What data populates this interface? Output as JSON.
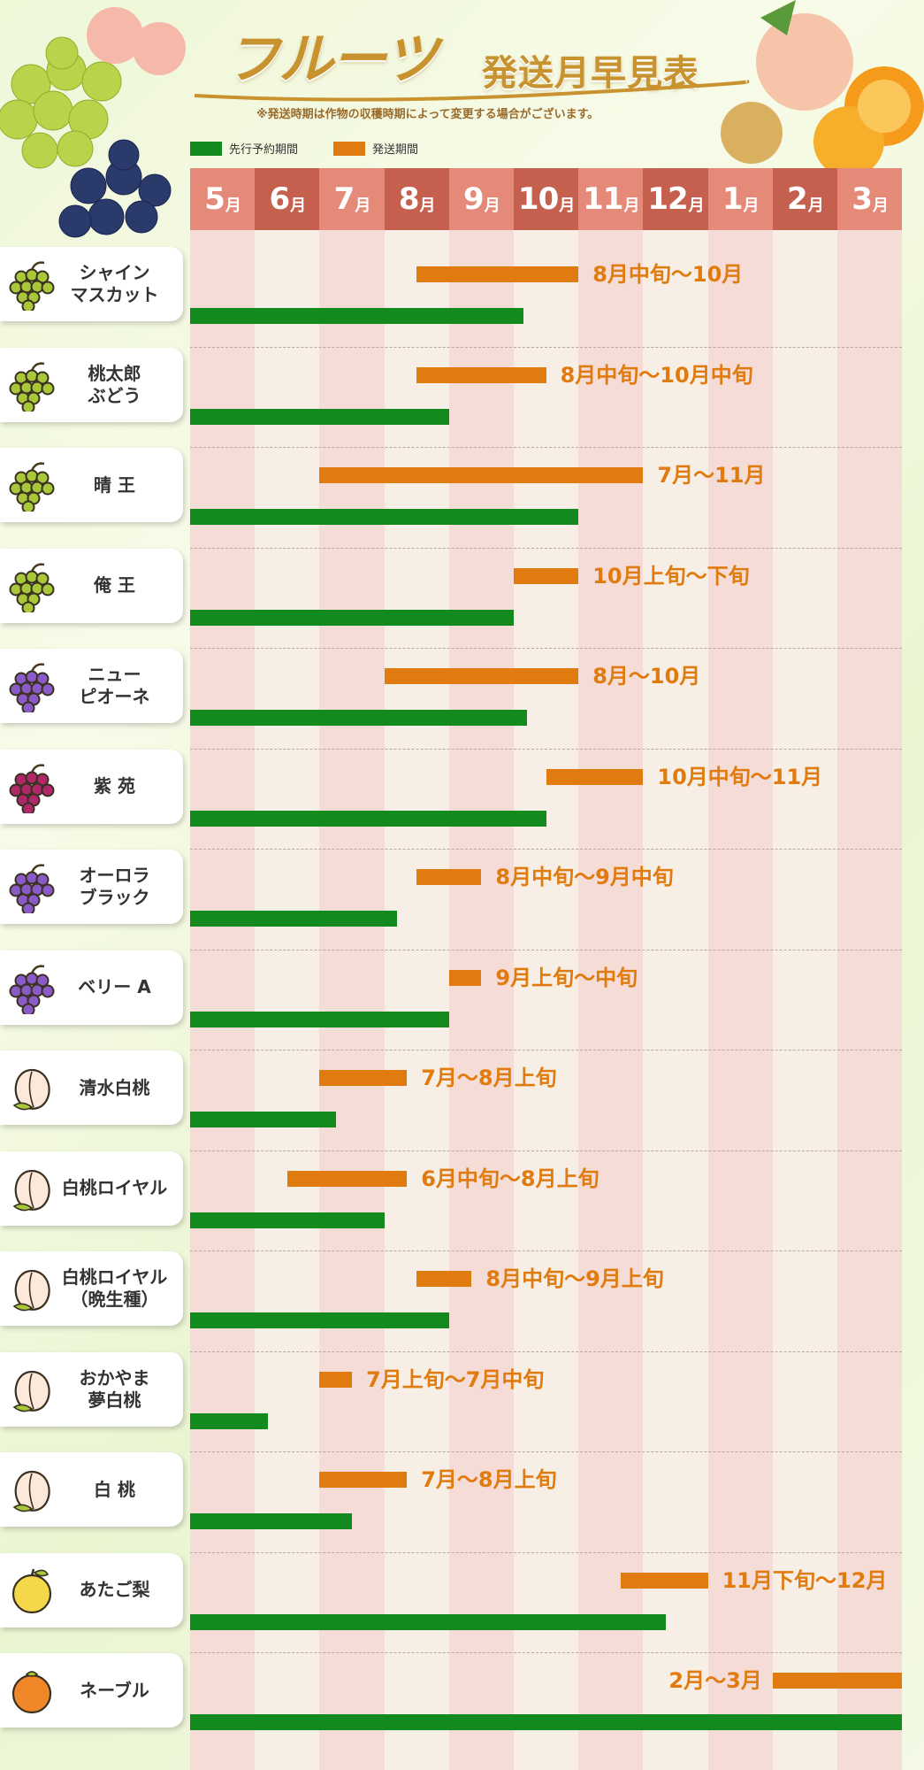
{
  "header": {
    "title_main": "フルーツ",
    "title_sub": "発送月早見表",
    "note": "※発送時期は作物の収穫時期によって変更する場合がございます。"
  },
  "legend": [
    {
      "label": "先行予約期間",
      "color": "#138a1e"
    },
    {
      "label": "発送期間",
      "color": "#e07b10"
    }
  ],
  "months": [
    {
      "num": "5",
      "unit": "月"
    },
    {
      "num": "6",
      "unit": "月"
    },
    {
      "num": "7",
      "unit": "月"
    },
    {
      "num": "8",
      "unit": "月"
    },
    {
      "num": "9",
      "unit": "月"
    },
    {
      "num": "10",
      "unit": "月"
    },
    {
      "num": "11",
      "unit": "月"
    },
    {
      "num": "12",
      "unit": "月"
    },
    {
      "num": "1",
      "unit": "月"
    },
    {
      "num": "2",
      "unit": "月"
    },
    {
      "num": "3",
      "unit": "月"
    }
  ],
  "colors": {
    "ship": "#e07b10",
    "preorder": "#138a1e",
    "head_light": "#e58a78",
    "head_dark": "#c5604e",
    "band_light": "#f7efe6",
    "band_dark": "#f6dcd6"
  },
  "chart_data": {
    "type": "bar",
    "x_axis": "month",
    "rows": [
      {
        "name": "シャイン\nマスカット",
        "icon": "green-grape-icon",
        "period_label": "8月中旬～10月",
        "ship": [
          3.5,
          6.0
        ],
        "preorder": [
          0.0,
          5.15
        ]
      },
      {
        "name": "桃太郎\nぶどう",
        "icon": "green-grape-icon",
        "period_label": "8月中旬～10月中旬",
        "ship": [
          3.5,
          5.5
        ],
        "preorder": [
          0.0,
          4.0
        ]
      },
      {
        "name": "晴 王",
        "icon": "green-grape-icon",
        "period_label": "7月～11月",
        "ship": [
          2.0,
          7.0
        ],
        "preorder": [
          0.0,
          6.0
        ]
      },
      {
        "name": "俺 王",
        "icon": "green-grape-icon",
        "period_label": "10月上旬～下旬",
        "ship": [
          5.0,
          6.0
        ],
        "preorder": [
          0.0,
          5.0
        ]
      },
      {
        "name": "ニュー\nピオーネ",
        "icon": "purple-grape-icon",
        "period_label": "8月～10月",
        "ship": [
          3.0,
          6.0
        ],
        "preorder": [
          0.0,
          5.2
        ]
      },
      {
        "name": "紫 苑",
        "icon": "red-grape-icon",
        "period_label": "10月中旬～11月",
        "ship": [
          5.5,
          7.0
        ],
        "preorder": [
          0.0,
          5.5
        ]
      },
      {
        "name": "オーロラ\nブラック",
        "icon": "purple-grape-icon",
        "period_label": "8月中旬～9月中旬",
        "ship": [
          3.5,
          4.5
        ],
        "preorder": [
          0.0,
          3.2
        ]
      },
      {
        "name": "ベリー A",
        "icon": "purple-grape-icon",
        "period_label": "9月上旬～中旬",
        "ship": [
          4.0,
          4.5
        ],
        "preorder": [
          0.0,
          4.0
        ]
      },
      {
        "name": "清水白桃",
        "icon": "peach-icon",
        "period_label": "7月～8月上旬",
        "ship": [
          2.0,
          3.35
        ],
        "preorder": [
          0.0,
          2.25
        ]
      },
      {
        "name": "白桃ロイヤル",
        "icon": "peach-icon",
        "period_label": "6月中旬～8月上旬",
        "ship": [
          1.5,
          3.35
        ],
        "preorder": [
          0.0,
          3.0
        ]
      },
      {
        "name": "白桃ロイヤル\n（晩生種）",
        "icon": "peach-icon",
        "period_label": "8月中旬～9月上旬",
        "ship": [
          3.5,
          4.35
        ],
        "preorder": [
          0.0,
          4.0
        ]
      },
      {
        "name": "おかやま\n夢白桃",
        "icon": "peach-icon",
        "period_label": "7月上旬～7月中旬",
        "ship": [
          2.0,
          2.5
        ],
        "preorder": [
          0.0,
          1.2
        ]
      },
      {
        "name": "白 桃",
        "icon": "peach-icon",
        "period_label": "7月～8月上旬",
        "ship": [
          2.0,
          3.35
        ],
        "preorder": [
          0.0,
          2.5
        ]
      },
      {
        "name": "あたご梨",
        "icon": "pear-icon",
        "period_label": "11月下旬～12月",
        "ship": [
          6.65,
          8.0
        ],
        "preorder": [
          0.0,
          7.35
        ]
      },
      {
        "name": "ネーブル",
        "icon": "orange-icon",
        "period_label": "2月～3月",
        "ship": [
          9.0,
          11.0
        ],
        "preorder": [
          0.0,
          11.0
        ]
      }
    ]
  }
}
